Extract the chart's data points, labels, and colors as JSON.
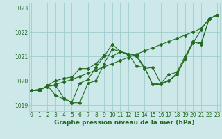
{
  "x": [
    0,
    1,
    2,
    3,
    4,
    5,
    6,
    7,
    8,
    9,
    10,
    11,
    12,
    13,
    14,
    15,
    16,
    17,
    18,
    19,
    20,
    21,
    22,
    23
  ],
  "line1_straight": [
    1019.6,
    1019.65,
    1019.75,
    1019.85,
    1019.95,
    1020.05,
    1020.18,
    1020.31,
    1020.44,
    1020.57,
    1020.7,
    1020.83,
    1020.96,
    1021.09,
    1021.22,
    1021.35,
    1021.48,
    1021.61,
    1021.74,
    1021.87,
    1022.0,
    1022.15,
    1022.55,
    1022.7
  ],
  "line2_wavy": [
    1019.6,
    1019.6,
    1019.8,
    1019.8,
    1019.3,
    1019.1,
    1019.1,
    1019.9,
    1020.0,
    1020.7,
    1021.3,
    1021.2,
    1021.1,
    1021.05,
    1020.55,
    1019.85,
    1019.85,
    1020.0,
    1020.25,
    1020.9,
    1021.55,
    1022.1,
    1022.55,
    1022.7
  ],
  "line3_wavy2": [
    1019.6,
    1019.6,
    1019.8,
    1019.4,
    1019.25,
    1019.1,
    1019.9,
    1020.05,
    1020.55,
    1021.0,
    1021.5,
    1021.2,
    1021.1,
    1020.6,
    1020.55,
    1019.85,
    1019.9,
    1020.25,
    1020.35,
    1021.0,
    1021.6,
    1021.55,
    1022.55,
    1022.7
  ],
  "line4_mid": [
    1019.6,
    1019.6,
    1019.8,
    1020.0,
    1020.1,
    1020.15,
    1020.5,
    1020.5,
    1020.7,
    1021.05,
    1021.0,
    1021.2,
    1021.05,
    1021.0,
    1020.5,
    1020.55,
    1019.9,
    1020.0,
    1020.3,
    1020.9,
    1021.6,
    1021.5,
    1022.55,
    1022.7
  ],
  "ylim_min": 1018.75,
  "ylim_max": 1023.2,
  "yticks": [
    1019,
    1020,
    1021,
    1022,
    1023
  ],
  "xtick_labels": [
    "0",
    "1",
    "2",
    "3",
    "4",
    "5",
    "6",
    "7",
    "8",
    "9",
    "10",
    "11",
    "12",
    "13",
    "14",
    "15",
    "16",
    "17",
    "18",
    "19",
    "20",
    "21",
    "22",
    "23"
  ],
  "line_color": "#236b23",
  "bg_color": "#cce8e8",
  "grid_color": "#a0cccc",
  "xlabel": "Graphe pression niveau de la mer (hPa)",
  "tick_fontsize": 5.5,
  "label_fontsize": 6.5
}
